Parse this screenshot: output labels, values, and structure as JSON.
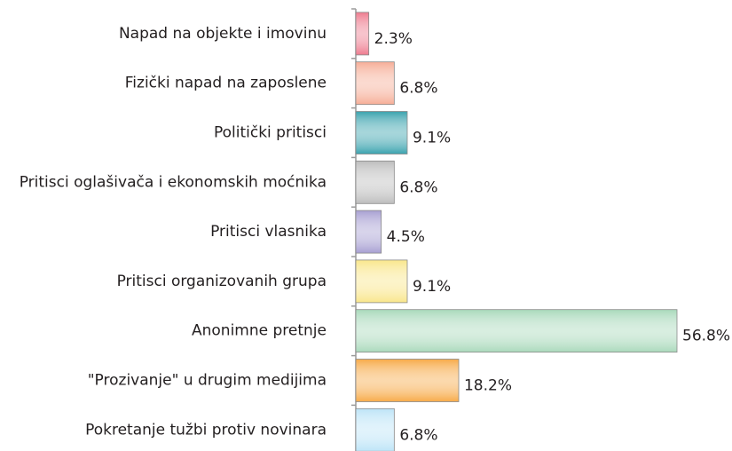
{
  "chart_data": {
    "type": "bar",
    "orientation": "horizontal",
    "categories": [
      "Napad na objekte i imovinu",
      "Fizički napad na zaposlene",
      "Politički pritisci",
      "Pritisci oglašivača i ekonomskih moćnika",
      "Pritisci vlasnika",
      "Pritisci organizovanih grupa",
      "Anonimne pretnje",
      "\"Prozivanje\" u drugim medijima",
      "Pokretanje tužbi protiv novinara"
    ],
    "values": [
      2.3,
      6.8,
      9.1,
      6.8,
      4.5,
      9.1,
      56.8,
      18.2,
      6.8
    ],
    "value_labels": [
      "2.3%",
      "6.8%",
      "9.1%",
      "6.8%",
      "4.5%",
      "9.1%",
      "56.8%",
      "18.2%",
      "6.8%"
    ],
    "colors": [
      "#ee7b8e",
      "#f6ad96",
      "#3aa3ae",
      "#bdbdbd",
      "#a79fd2",
      "#f9e68a",
      "#a9d9bb",
      "#f7aa48",
      "#bde4f7"
    ]
  }
}
